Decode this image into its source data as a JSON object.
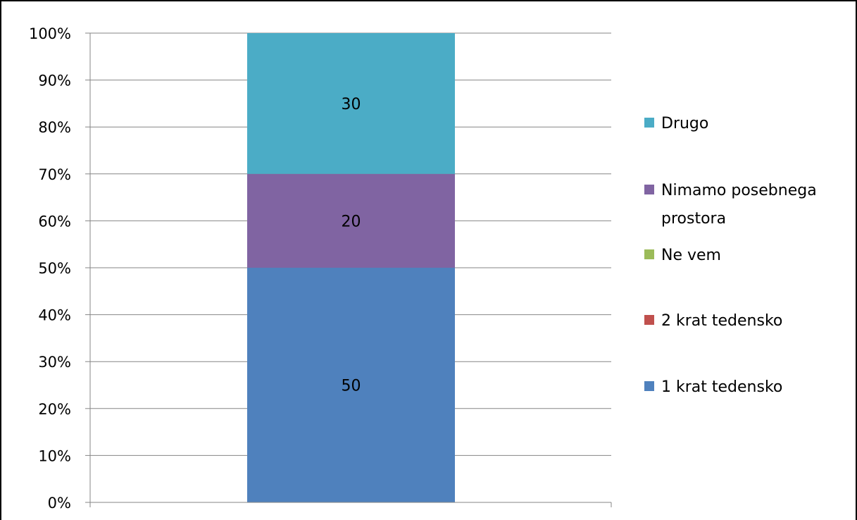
{
  "chart_data": {
    "type": "bar",
    "stacked": true,
    "percent_stacked": true,
    "categories": [
      ""
    ],
    "series": [
      {
        "name": "1 krat tedensko",
        "values": [
          50
        ],
        "color": "#4F81BD",
        "label": "50"
      },
      {
        "name": "2 krat tedensko",
        "values": [
          0
        ],
        "color": "#C0504D",
        "label": ""
      },
      {
        "name": "Ne vem",
        "values": [
          0
        ],
        "color": "#9BBB59",
        "label": ""
      },
      {
        "name": "Nimamo posebnega prostora",
        "values": [
          20
        ],
        "color": "#8064A2",
        "label": "20"
      },
      {
        "name": "Drugo",
        "values": [
          30
        ],
        "color": "#4BACC6",
        "label": "30"
      }
    ],
    "legend_order": [
      "Drugo",
      "Nimamo posebnega prostora",
      "Ne vem",
      "2 krat tedensko",
      "1 krat tedensko"
    ],
    "legend_lines": {
      "Drugo": [
        "Drugo"
      ],
      "Nimamo posebnega prostora": [
        "Nimamo posebnega",
        "prostora"
      ],
      "Ne vem": [
        "Ne vem"
      ],
      "2 krat tedensko": [
        "2 krat tedensko"
      ],
      "1 krat tedensko": [
        "1 krat tedensko"
      ]
    },
    "yticks": [
      "0%",
      "10%",
      "20%",
      "30%",
      "40%",
      "50%",
      "60%",
      "70%",
      "80%",
      "90%",
      "100%"
    ],
    "ylim": [
      0,
      100
    ],
    "grid": true,
    "legend_position": "right",
    "title": "",
    "xlabel": "",
    "ylabel": ""
  }
}
